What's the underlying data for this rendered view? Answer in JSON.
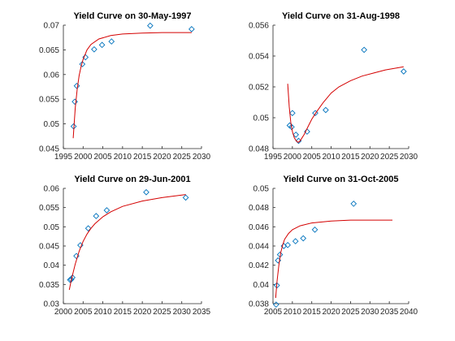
{
  "chart_data": [
    {
      "type": "scatter",
      "title": "Yield Curve on 30-May-1997",
      "xlabel": "",
      "ylabel": "",
      "xlim": [
        1995,
        2030
      ],
      "ylim": [
        0.045,
        0.07
      ],
      "xticks": [
        1995,
        2000,
        2005,
        2010,
        2015,
        2020,
        2025,
        2030
      ],
      "yticks": [
        0.045,
        0.05,
        0.055,
        0.06,
        0.065,
        0.07
      ],
      "xtick_labels": [
        "1995",
        "2000",
        "2005",
        "2010",
        "2015",
        "2020",
        "2025",
        "2030"
      ],
      "ytick_labels": [
        "0.045",
        "0.05",
        "0.055",
        "0.06",
        "0.065",
        "0.07"
      ],
      "series": [
        {
          "kind": "markers",
          "marker": "diamond",
          "x": [
            1997.6,
            1997.9,
            1998.4,
            1999.8,
            2000.6,
            2002.8,
            2004.8,
            2007.2,
            2017.0,
            2027.5
          ],
          "y": [
            0.0495,
            0.0545,
            0.0577,
            0.0621,
            0.0635,
            0.0651,
            0.066,
            0.0667,
            0.0699,
            0.0692
          ]
        },
        {
          "kind": "line",
          "x": [
            1997.5,
            1998.0,
            1998.5,
            1999.0,
            1999.5,
            2000.0,
            2001.0,
            2002.0,
            2004.0,
            2007.0,
            2010.0,
            2015.0,
            2020.0,
            2027.5
          ],
          "y": [
            0.0471,
            0.0532,
            0.057,
            0.0598,
            0.0617,
            0.0631,
            0.065,
            0.0661,
            0.0672,
            0.0679,
            0.0682,
            0.0684,
            0.0685,
            0.0685
          ]
        }
      ],
      "colors": {
        "marker": "#0072bd",
        "line": "#d40000"
      }
    },
    {
      "type": "scatter",
      "title": "Yield Curve on 31-Aug-1998",
      "xlabel": "",
      "ylabel": "",
      "xlim": [
        1995,
        2030
      ],
      "ylim": [
        0.048,
        0.056
      ],
      "xticks": [
        1995,
        2000,
        2005,
        2010,
        2015,
        2020,
        2025,
        2030
      ],
      "yticks": [
        0.048,
        0.05,
        0.052,
        0.054,
        0.056
      ],
      "xtick_labels": [
        "1995",
        "2000",
        "2005",
        "2010",
        "2015",
        "2020",
        "2025",
        "2030"
      ],
      "ytick_labels": [
        "0.048",
        "0.05",
        "0.052",
        "0.054",
        "0.056"
      ],
      "series": [
        {
          "kind": "markers",
          "marker": "diamond",
          "x": [
            1999.3,
            1999.8,
            2000.0,
            2000.9,
            2001.6,
            2003.8,
            2005.9,
            2008.6,
            2018.5,
            2028.7
          ],
          "y": [
            0.0495,
            0.0494,
            0.0503,
            0.0489,
            0.0485,
            0.0491,
            0.0503,
            0.0505,
            0.0544,
            0.053
          ]
        },
        {
          "kind": "line",
          "x": [
            1998.8,
            1999.2,
            1999.6,
            2000.0,
            2000.5,
            2001.0,
            2001.5,
            2002.0,
            2002.5,
            2003.0,
            2004.0,
            2005.0,
            2006.0,
            2008.0,
            2010.0,
            2012.0,
            2015.0,
            2018.0,
            2021.0,
            2024.0,
            2028.7
          ],
          "y": [
            0.0522,
            0.0507,
            0.0497,
            0.0491,
            0.0487,
            0.0485,
            0.0484,
            0.0485,
            0.0487,
            0.0489,
            0.0494,
            0.0499,
            0.0503,
            0.051,
            0.0516,
            0.052,
            0.0524,
            0.0527,
            0.0529,
            0.0531,
            0.0533
          ]
        }
      ],
      "colors": {
        "marker": "#0072bd",
        "line": "#d40000"
      }
    },
    {
      "type": "scatter",
      "title": "Yield Curve on 29-Jun-2001",
      "xlabel": "",
      "ylabel": "",
      "xlim": [
        2000,
        2035
      ],
      "ylim": [
        0.03,
        0.06
      ],
      "xticks": [
        2000,
        2005,
        2010,
        2015,
        2020,
        2025,
        2030,
        2035
      ],
      "yticks": [
        0.03,
        0.035,
        0.04,
        0.045,
        0.05,
        0.055,
        0.06
      ],
      "xtick_labels": [
        "2000",
        "2005",
        "2010",
        "2015",
        "2020",
        "2025",
        "2030",
        "2035"
      ],
      "ytick_labels": [
        "0.03",
        "0.035",
        "0.04",
        "0.045",
        "0.05",
        "0.055",
        "0.06"
      ],
      "series": [
        {
          "kind": "markers",
          "marker": "diamond",
          "x": [
            2001.7,
            2002.0,
            2002.3,
            2003.3,
            2004.3,
            2006.3,
            2008.3,
            2011.0,
            2021.0,
            2031.0
          ],
          "y": [
            0.0362,
            0.0363,
            0.0368,
            0.0424,
            0.0452,
            0.0496,
            0.0528,
            0.0543,
            0.059,
            0.0576
          ]
        },
        {
          "kind": "line",
          "x": [
            2001.5,
            2002.0,
            2003.0,
            2004.0,
            2005.0,
            2006.0,
            2007.0,
            2008.0,
            2010.0,
            2012.0,
            2015.0,
            2020.0,
            2025.0,
            2031.0
          ],
          "y": [
            0.0336,
            0.0361,
            0.0403,
            0.0436,
            0.0462,
            0.0481,
            0.0496,
            0.0508,
            0.0526,
            0.0539,
            0.0553,
            0.0567,
            0.0576,
            0.0584
          ]
        }
      ],
      "colors": {
        "marker": "#0072bd",
        "line": "#d40000"
      }
    },
    {
      "type": "scatter",
      "title": "Yield Curve on 31-Oct-2005",
      "xlabel": "",
      "ylabel": "",
      "xlim": [
        2005,
        2040
      ],
      "ylim": [
        0.038,
        0.05
      ],
      "xticks": [
        2005,
        2010,
        2015,
        2020,
        2025,
        2030,
        2035,
        2040
      ],
      "yticks": [
        0.038,
        0.04,
        0.042,
        0.044,
        0.046,
        0.048,
        0.05
      ],
      "xtick_labels": [
        "2005",
        "2010",
        "2015",
        "2020",
        "2025",
        "2030",
        "2035",
        "2040"
      ],
      "ytick_labels": [
        "0.038",
        "0.04",
        "0.042",
        "0.044",
        "0.046",
        "0.048",
        "0.05"
      ],
      "series": [
        {
          "kind": "markers",
          "marker": "diamond",
          "x": [
            2005.8,
            2006.0,
            2006.3,
            2006.8,
            2007.8,
            2008.8,
            2010.8,
            2012.8,
            2015.8,
            2025.8
          ],
          "y": [
            0.0379,
            0.0399,
            0.0425,
            0.0431,
            0.044,
            0.0441,
            0.0445,
            0.0448,
            0.0457,
            0.0484
          ]
        },
        {
          "kind": "line",
          "x": [
            2005.7,
            2006.0,
            2006.5,
            2007.0,
            2007.5,
            2008.0,
            2009.0,
            2010.0,
            2012.0,
            2015.0,
            2020.0,
            2025.0,
            2030.0,
            2035.8
          ],
          "y": [
            0.0386,
            0.0402,
            0.042,
            0.0433,
            0.0441,
            0.0447,
            0.0453,
            0.0457,
            0.0461,
            0.0464,
            0.0466,
            0.0467,
            0.0467,
            0.0467
          ]
        }
      ],
      "colors": {
        "marker": "#0072bd",
        "line": "#d40000"
      }
    }
  ]
}
